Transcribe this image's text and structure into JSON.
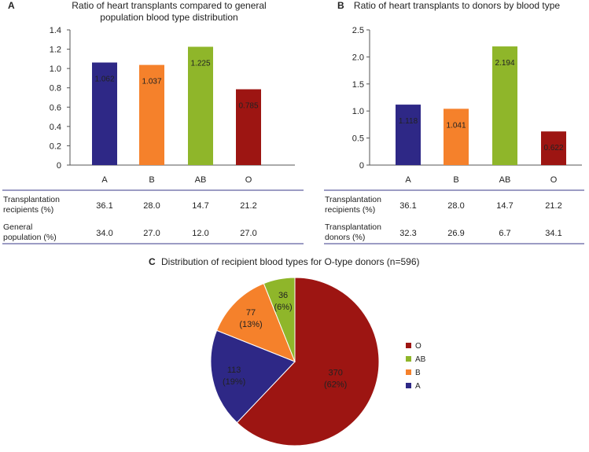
{
  "chart_data": [
    {
      "panel": "A",
      "type": "bar",
      "title": [
        "Ratio of heart transplants compared to general",
        "population blood type distribution"
      ],
      "categories": [
        "A",
        "B",
        "AB",
        "O"
      ],
      "values": [
        1.062,
        1.037,
        1.225,
        0.785
      ],
      "value_labels": [
        "1.062",
        "1.037",
        "1.225",
        "0.785"
      ],
      "ylim": [
        0,
        1.4
      ],
      "yticks": [
        "0",
        "0.2",
        "0.4",
        "0.6",
        "0.8",
        "1.0",
        "1.2",
        "1.4"
      ],
      "table": [
        {
          "label": [
            "Transplantation",
            "recipients (%)"
          ],
          "values": [
            "36.1",
            "28.0",
            "14.7",
            "21.2"
          ]
        },
        {
          "label": [
            "General",
            "population (%)"
          ],
          "values": [
            "34.0",
            "27.0",
            "12.0",
            "27.0"
          ]
        }
      ]
    },
    {
      "panel": "B",
      "type": "bar",
      "title": [
        "Ratio of heart transplants to donors by blood type"
      ],
      "categories": [
        "A",
        "B",
        "AB",
        "O"
      ],
      "values": [
        1.118,
        1.041,
        2.194,
        0.622
      ],
      "value_labels": [
        "1.118",
        "1.041",
        "2.194",
        "0.622"
      ],
      "ylim": [
        0,
        2.5
      ],
      "yticks": [
        "0",
        "0.5",
        "1.0",
        "1.5",
        "2.0",
        "2.5"
      ],
      "table": [
        {
          "label": [
            "Transplantation",
            "recipients (%)"
          ],
          "values": [
            "36.1",
            "28.0",
            "14.7",
            "21.2"
          ]
        },
        {
          "label": [
            "Transplantation",
            "donors (%)"
          ],
          "values": [
            "32.3",
            "26.9",
            "6.7",
            "34.1"
          ]
        }
      ]
    },
    {
      "panel": "C",
      "type": "pie",
      "title": [
        "Distribution of recipient blood types for O-type donors (n=596)"
      ],
      "slices": [
        {
          "name": "O",
          "value": 370,
          "label": "370",
          "pct": "(62%)"
        },
        {
          "name": "A",
          "value": 113,
          "label": "113",
          "pct": "(19%)"
        },
        {
          "name": "B",
          "value": 77,
          "label": "77",
          "pct": "(13%)"
        },
        {
          "name": "AB",
          "value": 36,
          "label": "36",
          "pct": "(6%)"
        }
      ],
      "legend": [
        "O",
        "AB",
        "B",
        "A"
      ]
    }
  ],
  "colors": {
    "A": "#2e2886",
    "B": "#f5812b",
    "AB": "#8fb62a",
    "O": "#9d1512"
  }
}
